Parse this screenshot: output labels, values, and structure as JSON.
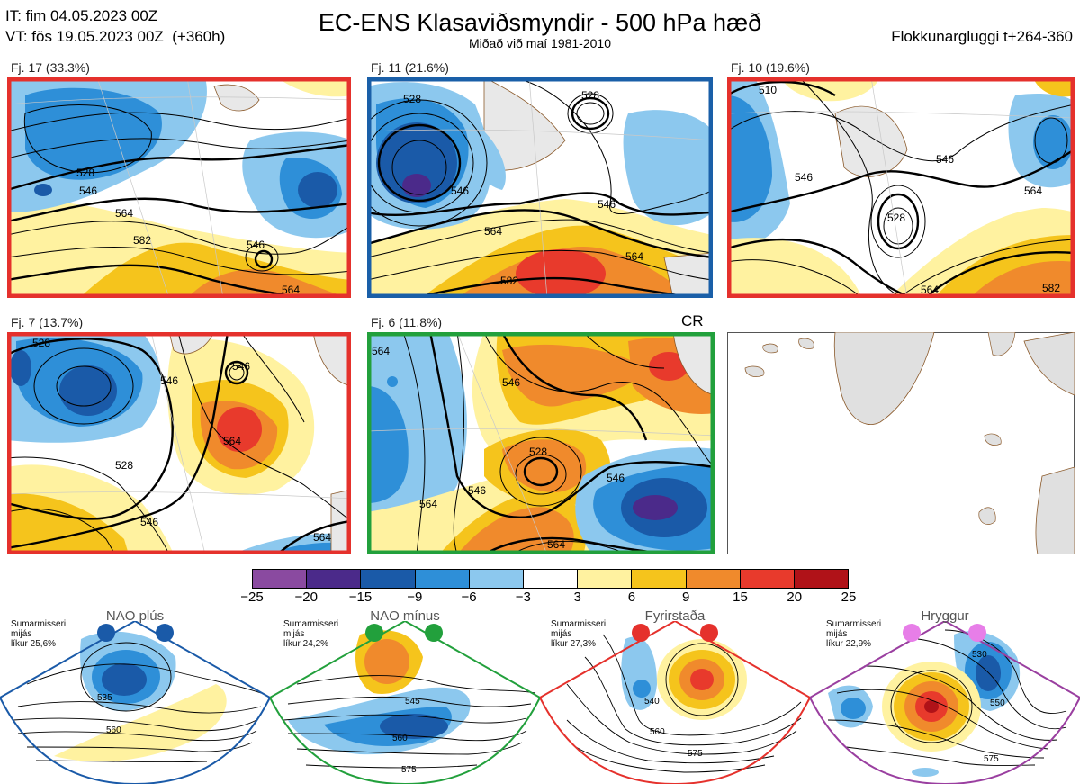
{
  "header": {
    "it_line": "IT: fim 04.05.2023 00Z",
    "vt_line": "VT: fös 19.05.2023 00Z  (+360h)",
    "title": "EC-ENS Klasaviðsmyndir - 500 hPa hæð",
    "subtitle": "Miðað við maí 1981-2010",
    "window": "Flokkunargluggi t+264-360"
  },
  "panels": [
    {
      "label": "Fj. 17 (33.3%)",
      "frame_color": "#e5312c",
      "contours": [
        "528",
        "546",
        "564",
        "582",
        "546",
        "564"
      ]
    },
    {
      "label": "Fj. 11 (21.6%)",
      "frame_color": "#1a5fa8",
      "contours": [
        "528",
        "528",
        "546",
        "546",
        "564",
        "564",
        "582"
      ]
    },
    {
      "label": "Fj. 10 (19.6%)",
      "frame_color": "#e5312c",
      "contours": [
        "510",
        "528",
        "546",
        "546",
        "564",
        "564",
        "582"
      ]
    },
    {
      "label": "Fj. 7 (13.7%)",
      "frame_color": "#e5312c",
      "contours": [
        "528",
        "546",
        "528",
        "546",
        "564",
        "546",
        "564"
      ]
    },
    {
      "label": "Fj. 6 (11.8%)",
      "frame_color": "#22a03c",
      "contours": [
        "564",
        "546",
        "546",
        "528",
        "546",
        "564",
        "564"
      ]
    }
  ],
  "cr_label": "CR",
  "colorbar": {
    "ticks": [
      "−25",
      "−20",
      "−15",
      "−9",
      "−6",
      "−3",
      "3",
      "6",
      "9",
      "15",
      "20",
      "25"
    ],
    "colors": [
      "#8a4aa0",
      "#4b2a8a",
      "#1a5aa8",
      "#2e8fd8",
      "#8cc8ee",
      "#ffffff",
      "#fff2a0",
      "#f5c41c",
      "#f08a2c",
      "#e83a2c",
      "#b01218"
    ]
  },
  "regimes": [
    {
      "title": "NAO plús",
      "info_1": "Sumarmisseri",
      "info_2": "mijás",
      "info_3": "líkur 25,6%",
      "color": "#1a5aa8",
      "contours": [
        "535",
        "560"
      ]
    },
    {
      "title": "NAO mínus",
      "info_1": "Sumarmisseri",
      "info_2": "mijás",
      "info_3": "líkur 24,2%",
      "color": "#22a03c",
      "contours": [
        "545",
        "560",
        "575"
      ]
    },
    {
      "title": "Fyrirstaða",
      "info_1": "Sumarmisseri",
      "info_2": "mijás",
      "info_3": "líkur 27,3%",
      "color": "#e5312c",
      "contours": [
        "540",
        "560",
        "575"
      ]
    },
    {
      "title": "Hryggur",
      "info_1": "Sumarmisseri",
      "info_2": "mijás",
      "info_3": "líkur 22,9%",
      "color": "#e77ee8",
      "contours": [
        "530",
        "550",
        "575"
      ]
    }
  ]
}
